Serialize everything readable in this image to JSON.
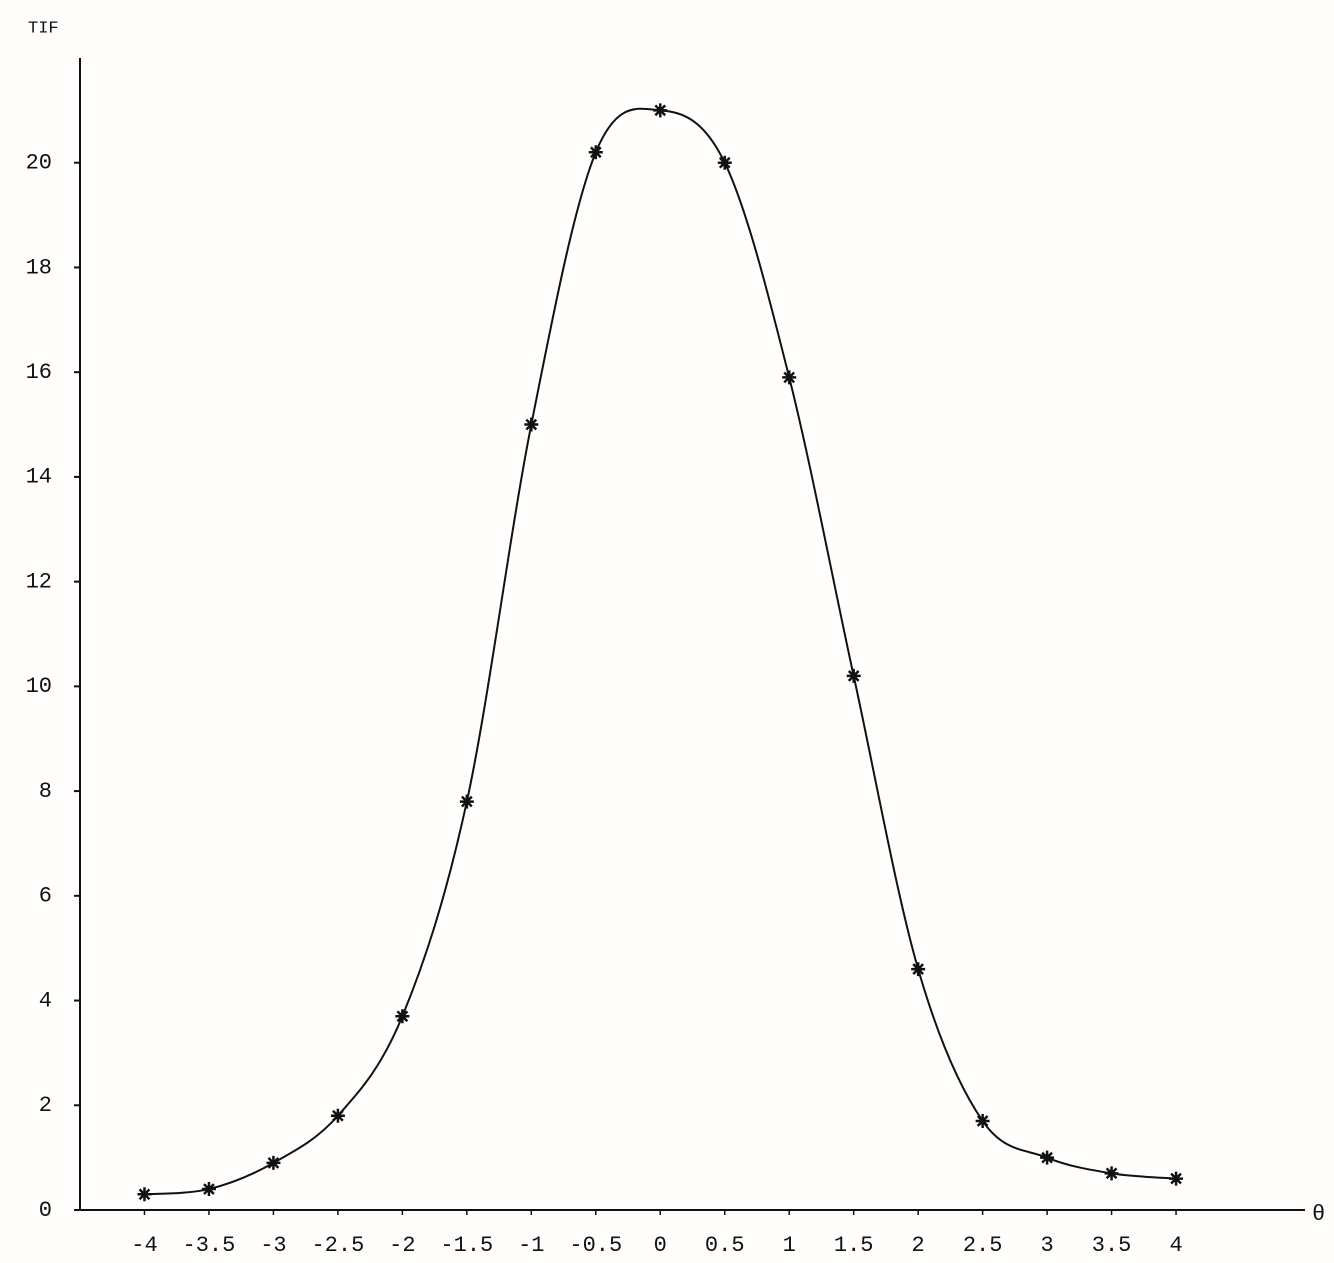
{
  "chart_data": {
    "type": "line",
    "y_label": "TIF",
    "x_label": "θ",
    "x": [
      -4,
      -3.5,
      -3,
      -2.5,
      -2,
      -1.5,
      -1,
      -0.5,
      0,
      0.5,
      1,
      1.5,
      2,
      2.5,
      3,
      3.5,
      4
    ],
    "series": [
      {
        "color": "#111111",
        "values": [
          0.3,
          0.4,
          0.9,
          1.8,
          3.7,
          7.8,
          15.0,
          20.2,
          21.0,
          20.0,
          15.9,
          10.2,
          4.6,
          1.7,
          1.0,
          0.7,
          0.6
        ]
      }
    ],
    "xlim": [
      -4.5,
      5
    ],
    "ylim": [
      0,
      22
    ],
    "xticks": [
      -4,
      -3.5,
      -3,
      -2.5,
      -2,
      -1.5,
      -1,
      -0.5,
      0,
      0.5,
      1,
      1.5,
      2,
      2.5,
      3,
      3.5,
      4
    ],
    "yticks": [
      0,
      2,
      4,
      6,
      8,
      10,
      12,
      14,
      16,
      18,
      20
    ],
    "grid": false
  }
}
